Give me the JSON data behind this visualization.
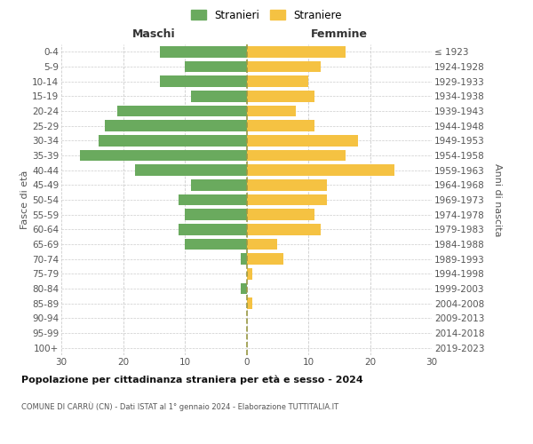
{
  "age_groups": [
    "0-4",
    "5-9",
    "10-14",
    "15-19",
    "20-24",
    "25-29",
    "30-34",
    "35-39",
    "40-44",
    "45-49",
    "50-54",
    "55-59",
    "60-64",
    "65-69",
    "70-74",
    "75-79",
    "80-84",
    "85-89",
    "90-94",
    "95-99",
    "100+"
  ],
  "birth_years": [
    "2019-2023",
    "2014-2018",
    "2009-2013",
    "2004-2008",
    "1999-2003",
    "1994-1998",
    "1989-1993",
    "1984-1988",
    "1979-1983",
    "1974-1978",
    "1969-1973",
    "1964-1968",
    "1959-1963",
    "1954-1958",
    "1949-1953",
    "1944-1948",
    "1939-1943",
    "1934-1938",
    "1929-1933",
    "1924-1928",
    "≤ 1923"
  ],
  "males": [
    14,
    10,
    14,
    9,
    21,
    23,
    24,
    27,
    18,
    9,
    11,
    10,
    11,
    10,
    1,
    0,
    1,
    0,
    0,
    0,
    0
  ],
  "females": [
    16,
    12,
    10,
    11,
    8,
    11,
    18,
    16,
    24,
    13,
    13,
    11,
    12,
    5,
    6,
    1,
    0,
    1,
    0,
    0,
    0
  ],
  "male_color": "#6aaa5e",
  "female_color": "#f5c242",
  "grid_color": "#cccccc",
  "center_line_color": "#999944",
  "axis_label_color": "#555555",
  "title": "Popolazione per cittadinanza straniera per età e sesso - 2024",
  "subtitle": "COMUNE DI CARRÙ (CN) - Dati ISTAT al 1° gennaio 2024 - Elaborazione TUTTITALIA.IT",
  "header_left": "Maschi",
  "header_right": "Femmine",
  "ylabel_left": "Fasce di età",
  "ylabel_right": "Anni di nascita",
  "legend_male": "Stranieri",
  "legend_female": "Straniere",
  "xlim": 30,
  "xticks": [
    -30,
    -20,
    -10,
    0,
    10,
    20,
    30
  ],
  "xtick_labels": [
    "30",
    "20",
    "10",
    "0",
    "10",
    "20",
    "30"
  ],
  "bar_height": 0.75
}
